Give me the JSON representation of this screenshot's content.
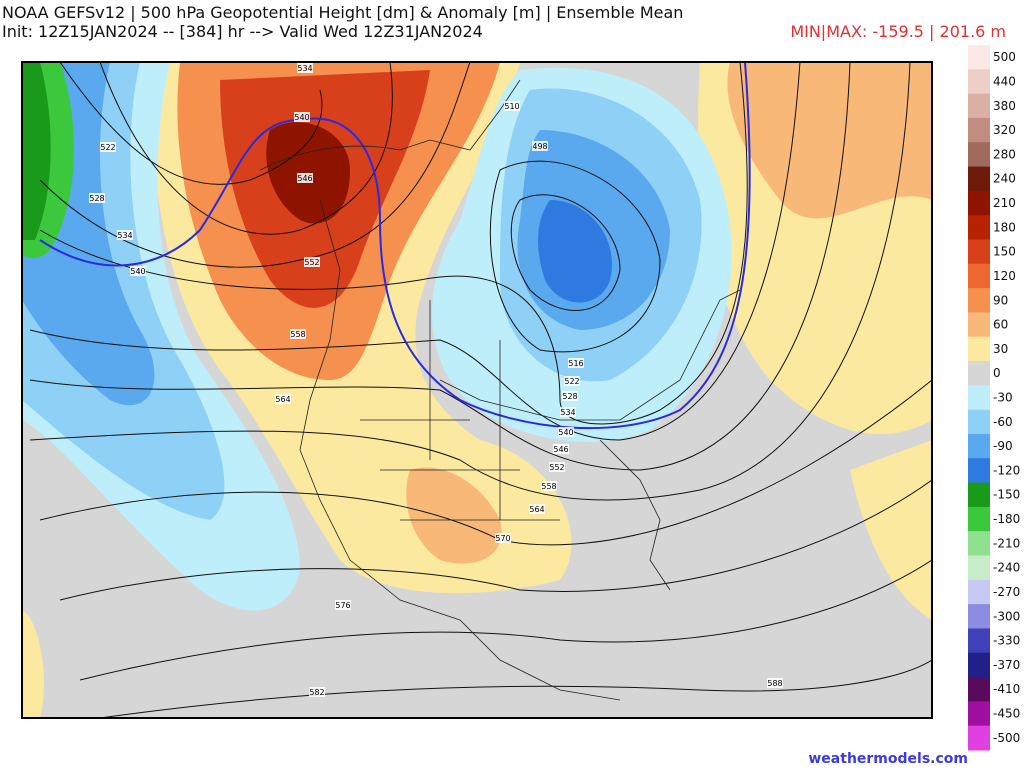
{
  "header": {
    "title": "NOAA GEFSv12 | 500 hPa Geopotential Height [dm] & Anomaly [m] | Ensemble Mean",
    "subtitle": "Init: 12Z15JAN2024 -- [384] hr --> Valid Wed 12Z31JAN2024",
    "minmax": "MIN|MAX: -159.5 | 201.6 m"
  },
  "colorbar": {
    "levels": [
      500,
      440,
      380,
      320,
      280,
      240,
      210,
      180,
      150,
      120,
      90,
      60,
      30,
      0,
      -30,
      -60,
      -90,
      -120,
      -150,
      -180,
      -210,
      -240,
      -270,
      -300,
      -330,
      -370,
      -410,
      -450,
      -500
    ],
    "colors": [
      "#fce8e4",
      "#eccfc6",
      "#d8b0a4",
      "#c08d80",
      "#a06a5c",
      "#6e1a08",
      "#8f1400",
      "#b82200",
      "#d8401c",
      "#ee6630",
      "#f5904e",
      "#f8b878",
      "#fce9a0",
      "#d6d6d6",
      "#bdeefa",
      "#8fd0f6",
      "#5aa8ee",
      "#2e7ae0",
      "#1a9a1a",
      "#3cc83c",
      "#90e090",
      "#c8ecc8",
      "#c8c8f4",
      "#8c8ce0",
      "#4040b8",
      "#20208a",
      "#5a0a5a",
      "#a010a0",
      "#e040e0"
    ]
  },
  "contour_labels": [
    "534",
    "540",
    "546",
    "552",
    "522",
    "528",
    "534",
    "540",
    "558",
    "564",
    "498",
    "510",
    "516",
    "522",
    "528",
    "534",
    "540",
    "546",
    "552",
    "558",
    "564",
    "570",
    "576",
    "582",
    "588"
  ],
  "footer": {
    "credit": "weathermodels.com"
  }
}
